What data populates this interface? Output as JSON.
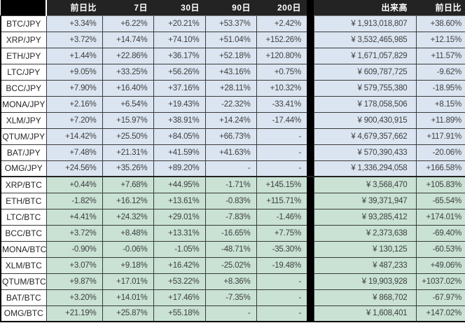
{
  "chart_data": {
    "type": "table",
    "columns": [
      "",
      "前日比",
      "7日",
      "30日",
      "90日",
      "200日",
      "出来高",
      "前日比"
    ],
    "rows": [
      {
        "pair": "BTC/JPY",
        "group": "jpy",
        "values": [
          "+3.34%",
          "+6.22%",
          "+20.21%",
          "+53.37%",
          "+2.42%"
        ],
        "volume": "¥ 1,913,018,807",
        "day_change": "+38.60%"
      },
      {
        "pair": "XRP/JPY",
        "group": "jpy",
        "values": [
          "+3.72%",
          "+14.74%",
          "+74.10%",
          "+51.04%",
          "+152.26%"
        ],
        "volume": "¥ 3,532,465,985",
        "day_change": "+12.15%"
      },
      {
        "pair": "ETH/JPY",
        "group": "jpy",
        "values": [
          "+1.44%",
          "+22.86%",
          "+36.17%",
          "+52.18%",
          "+120.80%"
        ],
        "volume": "¥ 1,671,057,829",
        "day_change": "+11.57%"
      },
      {
        "pair": "LTC/JPY",
        "group": "jpy",
        "values": [
          "+9.05%",
          "+33.25%",
          "+56.26%",
          "+43.16%",
          "+0.75%"
        ],
        "volume": "¥ 609,787,725",
        "day_change": "-9.62%"
      },
      {
        "pair": "BCC/JPY",
        "group": "jpy",
        "values": [
          "+7.90%",
          "+16.40%",
          "+37.16%",
          "+28.11%",
          "+10.32%"
        ],
        "volume": "¥ 579,755,380",
        "day_change": "-18.95%"
      },
      {
        "pair": "MONA/JPY",
        "group": "jpy",
        "values": [
          "+2.16%",
          "+6.54%",
          "+19.43%",
          "-22.32%",
          "-33.41%"
        ],
        "volume": "¥ 178,058,506",
        "day_change": "+8.15%"
      },
      {
        "pair": "XLM/JPY",
        "group": "jpy",
        "values": [
          "+7.20%",
          "+15.97%",
          "+38.91%",
          "+14.24%",
          "-17.44%"
        ],
        "volume": "¥ 900,430,915",
        "day_change": "+11.89%"
      },
      {
        "pair": "QTUM/JPY",
        "group": "jpy",
        "values": [
          "+14.42%",
          "+25.50%",
          "+84.05%",
          "+66.73%",
          "-"
        ],
        "volume": "¥ 4,679,357,662",
        "day_change": "+117.91%"
      },
      {
        "pair": "BAT/JPY",
        "group": "jpy",
        "values": [
          "+7.48%",
          "+21.31%",
          "+41.59%",
          "+41.63%",
          "-"
        ],
        "volume": "¥ 570,390,433",
        "day_change": "-20.06%"
      },
      {
        "pair": "OMG/JPY",
        "group": "jpy",
        "values": [
          "+24.56%",
          "+35.26%",
          "+89.20%",
          "-",
          "-"
        ],
        "volume": "¥ 1,336,294,058",
        "day_change": "+166.58%"
      },
      {
        "pair": "XRP/BTC",
        "group": "btc",
        "values": [
          "+0.44%",
          "+7.68%",
          "+44.95%",
          "-1.71%",
          "+145.15%"
        ],
        "volume": "¥ 3,568,470",
        "day_change": "+105.83%"
      },
      {
        "pair": "ETH/BTC",
        "group": "btc",
        "values": [
          "-1.82%",
          "+16.12%",
          "+13.61%",
          "-0.83%",
          "+115.71%"
        ],
        "volume": "¥ 39,371,947",
        "day_change": "-65.54%"
      },
      {
        "pair": "LTC/BTC",
        "group": "btc",
        "values": [
          "+4.41%",
          "+24.32%",
          "+29.01%",
          "-7.83%",
          "-1.46%"
        ],
        "volume": "¥ 93,285,412",
        "day_change": "+174.01%"
      },
      {
        "pair": "BCC/BTC",
        "group": "btc",
        "values": [
          "+3.72%",
          "+8.48%",
          "+13.31%",
          "-16.65%",
          "+7.75%"
        ],
        "volume": "¥ 2,373,638",
        "day_change": "-69.40%"
      },
      {
        "pair": "MONA/BTC",
        "group": "btc",
        "values": [
          "-0.90%",
          "-0.06%",
          "-1.05%",
          "-48.71%",
          "-35.30%"
        ],
        "volume": "¥ 130,125",
        "day_change": "-60.53%"
      },
      {
        "pair": "XLM/BTC",
        "group": "btc",
        "values": [
          "+3.07%",
          "+9.18%",
          "+16.42%",
          "-25.02%",
          "-19.48%"
        ],
        "volume": "¥ 487,233",
        "day_change": "+49.06%"
      },
      {
        "pair": "QTUM/BTC",
        "group": "btc",
        "values": [
          "+9.87%",
          "+17.01%",
          "+53.22%",
          "+8.36%",
          "-"
        ],
        "volume": "¥ 19,903,928",
        "day_change": "+1037.02%"
      },
      {
        "pair": "BAT/BTC",
        "group": "btc",
        "values": [
          "+3.20%",
          "+14.01%",
          "+17.46%",
          "-7.35%",
          "-"
        ],
        "volume": "¥ 868,702",
        "day_change": "-67.97%"
      },
      {
        "pair": "OMG/BTC",
        "group": "btc",
        "values": [
          "+21.19%",
          "+25.87%",
          "+55.18%",
          "-",
          "-"
        ],
        "volume": "¥ 1,608,401",
        "day_change": "+147.02%"
      }
    ]
  },
  "colors": {
    "header_bg": "#232323",
    "corner_bg": "#000000",
    "header_text": "#ffffff",
    "divider": "#000000",
    "jpy_row_bg": "#dbe5f1",
    "btc_row_bg": "#c9e2d4",
    "text": "#404040",
    "pair_text": "#262626"
  }
}
